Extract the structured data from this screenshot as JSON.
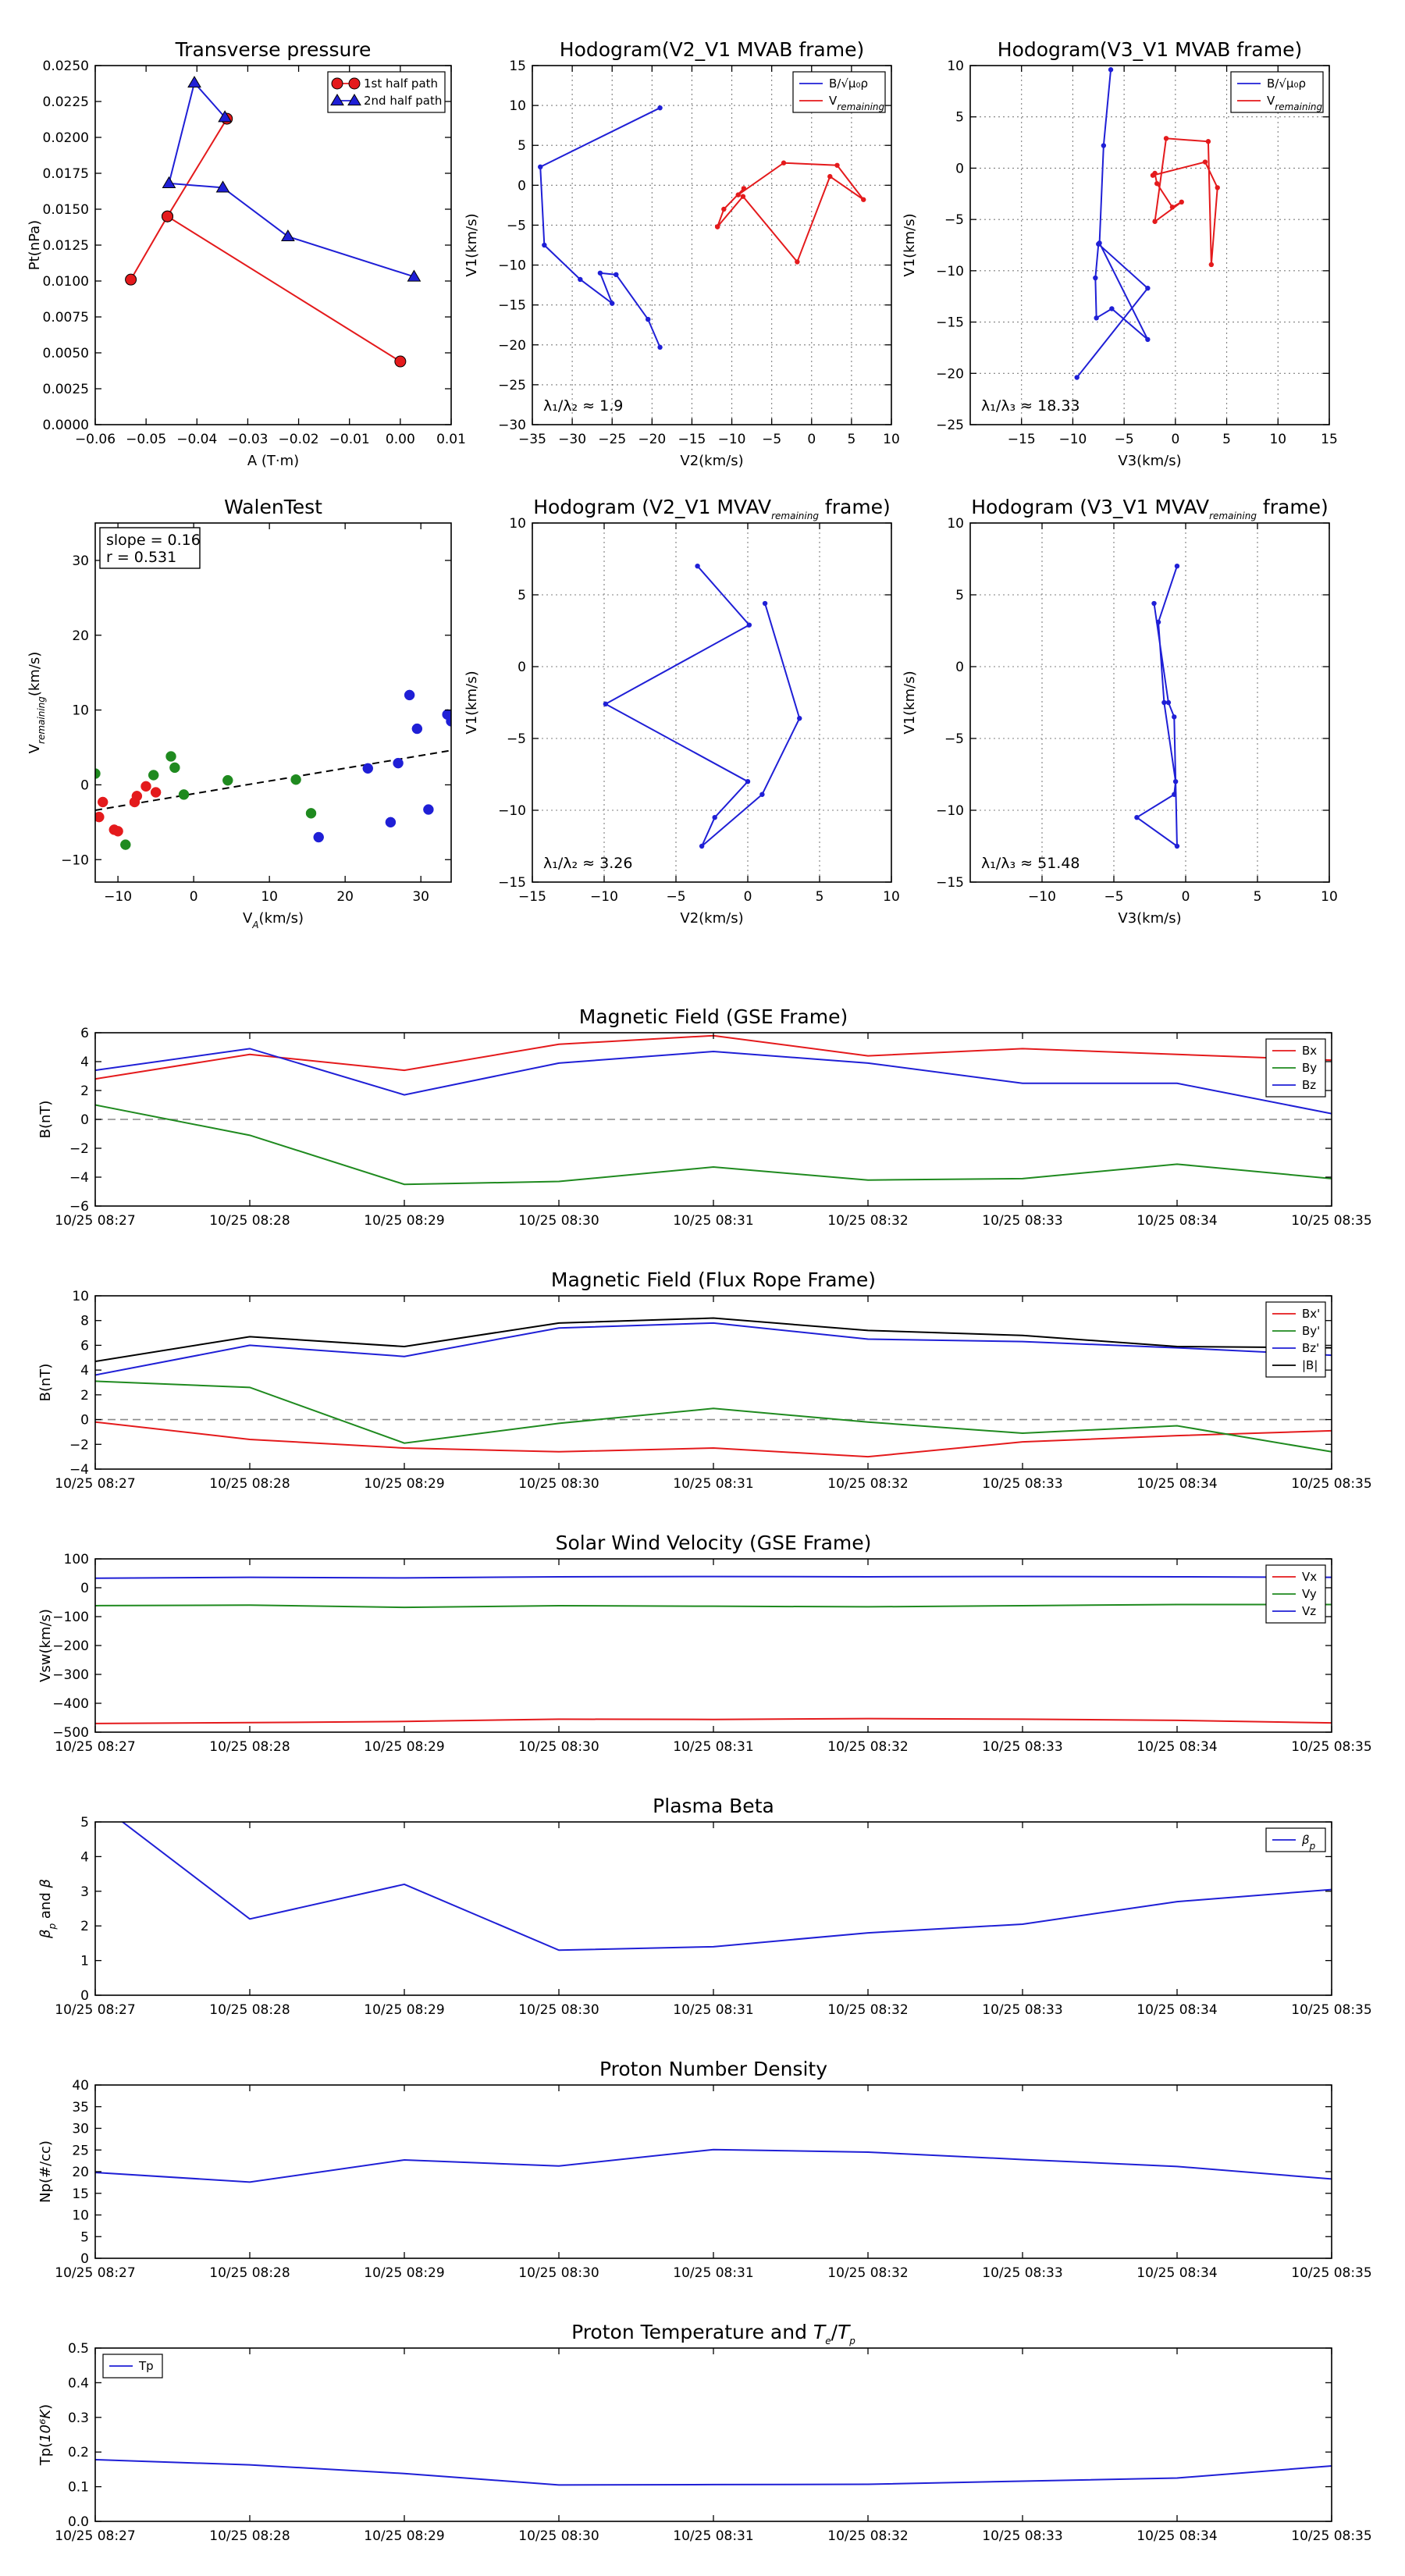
{
  "chart_data": [
    {
      "id": "tp",
      "type": "line",
      "title": "Transverse pressure",
      "xlabel": "A (T·m)",
      "ylabel": "Pt(nPa)",
      "xlim": [
        -0.06,
        0.01
      ],
      "ylim": [
        0,
        0.025
      ],
      "xticks": [
        -0.06,
        -0.05,
        -0.04,
        -0.03,
        -0.02,
        -0.01,
        0,
        0.01
      ],
      "xtick_labels": [
        "−0.06",
        "−0.05",
        "−0.04",
        "−0.03",
        "−0.02",
        "−0.01",
        "0.00",
        "0.01"
      ],
      "yticks": [
        0,
        0.0025,
        0.005,
        0.0075,
        0.01,
        0.0125,
        0.015,
        0.0175,
        0.02,
        0.0225,
        0.025
      ],
      "ytick_labels": [
        "0.0000",
        "0.0025",
        "0.0050",
        "0.0075",
        "0.0100",
        "0.0125",
        "0.0150",
        "0.0175",
        "0.0200",
        "0.0225",
        "0.0250"
      ],
      "grid": false,
      "legend": "top-right",
      "series": [
        {
          "name": "1st half path",
          "color": "#e41a1c",
          "marker": "circle",
          "x": [
            -0.0341,
            -0.0458,
            -0.053,
            -0.0458,
            0.0
          ],
          "y": [
            0.0213,
            0.0145,
            0.0101,
            0.0145,
            0.0044
          ]
        },
        {
          "name": "2nd half path",
          "color": "#1f1fd6",
          "marker": "triangle",
          "x": [
            -0.0345,
            -0.0405,
            -0.0455,
            -0.0349,
            -0.0221,
            0.0027
          ],
          "y": [
            0.0214,
            0.0238,
            0.0168,
            0.0165,
            0.0131,
            0.0103
          ]
        }
      ]
    },
    {
      "id": "h1",
      "type": "line",
      "title": "Hodogram(V2_V1 MVAB frame)",
      "xlabel": "V2(km/s)",
      "ylabel": "V1(km/s)",
      "xlim": [
        -35,
        10
      ],
      "ylim": [
        -30,
        15
      ],
      "xticks": [
        -35,
        -30,
        -25,
        -20,
        -15,
        -10,
        -5,
        0,
        5,
        10
      ],
      "xtick_labels": [
        "−35",
        "−30",
        "−25",
        "−20",
        "−15",
        "−10",
        "−5",
        "0",
        "5",
        "10"
      ],
      "yticks": [
        -30,
        -25,
        -20,
        -15,
        -10,
        -5,
        0,
        5,
        10,
        15
      ],
      "ytick_labels": [
        "−30",
        "−25",
        "−20",
        "−15",
        "−10",
        "−5",
        "0",
        "5",
        "10",
        "15"
      ],
      "grid": true,
      "legend": "top-right",
      "annotation": "λ₁/λ₂ ≈ 1.9",
      "series": [
        {
          "name": "B/√μ₀ρ",
          "color": "#1f1fd6",
          "x": [
            -19,
            -34,
            -33.5,
            -29,
            -25,
            -26.5,
            -24.5,
            -20.5,
            -19
          ],
          "y": [
            9.7,
            2.3,
            -7.5,
            -11.8,
            -14.8,
            -11,
            -11.2,
            -16.8,
            -20.3
          ]
        },
        {
          "name": "Vremaining",
          "color": "#e41a1c",
          "x": [
            -11.8,
            -11,
            -8.5,
            -9.2,
            -3.5,
            3.2,
            6.5,
            2.3,
            -1.8,
            -8.6,
            -11.8
          ],
          "y": [
            -5.2,
            -3,
            -0.4,
            -1.2,
            2.8,
            2.5,
            -1.8,
            1.1,
            -9.6,
            -1.4,
            -5.2
          ]
        }
      ]
    },
    {
      "id": "h2",
      "type": "line",
      "title": "Hodogram(V3_V1 MVAB frame)",
      "xlabel": "V3(km/s)",
      "ylabel": "V1(km/s)",
      "xlim": [
        -20,
        15
      ],
      "ylim": [
        -25,
        10
      ],
      "xticks": [
        -15,
        -10,
        -5,
        0,
        5,
        10,
        15
      ],
      "xtick_labels": [
        "−15",
        "−10",
        "−5",
        "0",
        "5",
        "10",
        "15"
      ],
      "yticks": [
        -25,
        -20,
        -15,
        -10,
        -5,
        0,
        5,
        10
      ],
      "ytick_labels": [
        "−25",
        "−20",
        "−15",
        "−10",
        "−5",
        "0",
        "5",
        "10"
      ],
      "grid": true,
      "legend": "top-right",
      "annotation": "λ₁/λ₃ ≈ 18.33",
      "series": [
        {
          "name": "B/√μ₀ρ",
          "color": "#1f1fd6",
          "x": [
            -6.3,
            -7,
            -7.4,
            -2.7,
            -6.2,
            -7.7,
            -7.8,
            -7.5,
            -2.7,
            -9.6
          ],
          "y": [
            9.6,
            2.2,
            -7.3,
            -16.7,
            -13.7,
            -14.6,
            -10.7,
            -7.4,
            -11.7,
            -20.4
          ]
        },
        {
          "name": "Vremaining",
          "color": "#e41a1c",
          "x": [
            -2,
            -1.8,
            -0.3,
            0.6,
            -2,
            -0.9,
            3.2,
            3.5,
            4.1,
            2.9,
            -2.2
          ],
          "y": [
            -0.5,
            -1.5,
            -3.8,
            -3.3,
            -5.2,
            2.9,
            2.6,
            -9.4,
            -1.9,
            0.6,
            -0.7
          ]
        }
      ]
    },
    {
      "id": "walen",
      "type": "scatter",
      "title": "WalenTest",
      "xlabel": "V_A(km/s)",
      "ylabel": "V_remaining(km/s)",
      "xlim": [
        -13,
        34
      ],
      "ylim": [
        -13,
        35
      ],
      "xticks": [
        -10,
        0,
        10,
        20,
        30
      ],
      "xtick_labels": [
        "−10",
        "0",
        "10",
        "20",
        "30"
      ],
      "yticks": [
        -10,
        0,
        10,
        20,
        30
      ],
      "ytick_labels": [
        "−10",
        "0",
        "10",
        "20",
        "30"
      ],
      "grid": false,
      "annotation_lines": [
        "slope = 0.16",
        "r = 0.531"
      ],
      "fit": {
        "slope": 0.16,
        "x": [
          -13,
          34
        ],
        "y": [
          -3.4,
          4.6
        ]
      },
      "series": [
        {
          "color": "#e41a1c",
          "x": [
            -12.5,
            -12,
            -10.5,
            -10,
            -7.5,
            -7.8,
            -6.3,
            -5
          ],
          "y": [
            -4.3,
            -2.3,
            -6,
            -6.2,
            -1.5,
            -2.3,
            -0.2,
            -1
          ]
        },
        {
          "color": "#1f8a1f",
          "x": [
            -13,
            -9,
            -3,
            -5.3,
            -2.5,
            -1.3,
            4.5,
            13.5,
            15.5
          ],
          "y": [
            1.5,
            -8,
            3.8,
            1.3,
            2.3,
            -1.3,
            0.6,
            0.7,
            -3.8
          ]
        },
        {
          "color": "#1f1fd6",
          "x": [
            16.5,
            23,
            26,
            27,
            28.5,
            29.5,
            31,
            33.5,
            34
          ],
          "y": [
            -7,
            2.2,
            -5,
            2.9,
            12,
            7.5,
            -3.3,
            9.4,
            8.5
          ]
        }
      ]
    },
    {
      "id": "h3",
      "type": "line",
      "title": "Hodogram (V2_V1 MVAV_remaining frame)",
      "xlabel": "V2(km/s)",
      "ylabel": "V1(km/s)",
      "xlim": [
        -15,
        10
      ],
      "ylim": [
        -15,
        10
      ],
      "xticks": [
        -15,
        -10,
        -5,
        0,
        5,
        10
      ],
      "xtick_labels": [
        "−15",
        "−10",
        "−5",
        "0",
        "5",
        "10"
      ],
      "yticks": [
        -15,
        -10,
        -5,
        0,
        5,
        10
      ],
      "ytick_labels": [
        "−15",
        "−10",
        "−5",
        "0",
        "5",
        "10"
      ],
      "grid": true,
      "annotation": "λ₁/λ₂ ≈ 3.26",
      "series": [
        {
          "color": "#1f1fd6",
          "x": [
            -3.5,
            0.1,
            -9.9,
            0,
            -2.3,
            -3.2,
            1,
            3.6,
            1.2
          ],
          "y": [
            7,
            2.9,
            -2.6,
            -8,
            -10.5,
            -12.5,
            -8.9,
            -3.6,
            4.4
          ]
        }
      ]
    },
    {
      "id": "h4",
      "type": "line",
      "title": "Hodogram (V3_V1 MVAV_remaining frame)",
      "xlabel": "V3(km/s)",
      "ylabel": "V1(km/s)",
      "xlim": [
        -15,
        10
      ],
      "ylim": [
        -15,
        10
      ],
      "xticks": [
        -10,
        -5,
        0,
        5,
        10
      ],
      "xtick_labels": [
        "−10",
        "−5",
        "0",
        "5",
        "10"
      ],
      "yticks": [
        -15,
        -10,
        -5,
        0,
        5,
        10
      ],
      "ytick_labels": [
        "−15",
        "−10",
        "−5",
        "0",
        "5",
        "10"
      ],
      "grid": true,
      "annotation": "λ₁/λ₃ ≈ 51.48",
      "series": [
        {
          "color": "#1f1fd6",
          "x": [
            -0.6,
            -1.9,
            -1.5,
            -0.7,
            -0.8,
            -3.4,
            -0.6,
            -0.8,
            -1.2,
            -2.2
          ],
          "y": [
            7,
            3.1,
            -2.5,
            -8,
            -8.9,
            -10.5,
            -12.5,
            -3.5,
            -2.5,
            4.4
          ]
        }
      ]
    },
    {
      "id": "bgse",
      "type": "line",
      "title": "Magnetic Field (GSE Frame)",
      "ylabel": "B(nT)",
      "ylim": [
        -6,
        6
      ],
      "yticks": [
        -6,
        -4,
        -2,
        0,
        2,
        4,
        6
      ],
      "ytick_labels": [
        "−6",
        "−4",
        "−2",
        "0",
        "2",
        "4",
        "6"
      ],
      "zero_line": true,
      "legend": "top-right",
      "categories": [
        "10/25 08:27",
        "10/25 08:28",
        "10/25 08:29",
        "10/25 08:30",
        "10/25 08:31",
        "10/25 08:32",
        "10/25 08:33",
        "10/25 08:34",
        "10/25 08:35"
      ],
      "series": [
        {
          "name": "Bx",
          "color": "#e41a1c",
          "values": [
            2.8,
            4.5,
            3.4,
            5.2,
            5.8,
            4.4,
            4.9,
            4.5,
            4.1
          ]
        },
        {
          "name": "By",
          "color": "#1f8a1f",
          "values": [
            1,
            -1.1,
            -4.5,
            -4.3,
            -3.3,
            -4.2,
            -4.1,
            -3.1,
            -4.1
          ]
        },
        {
          "name": "Bz",
          "color": "#1f1fd6",
          "values": [
            3.4,
            4.9,
            1.7,
            3.9,
            4.7,
            3.9,
            2.5,
            2.5,
            0.4
          ]
        }
      ]
    },
    {
      "id": "bfr",
      "type": "line",
      "title": "Magnetic Field (Flux Rope Frame)",
      "ylabel": "B(nT)",
      "ylim": [
        -4,
        10
      ],
      "yticks": [
        -4,
        -2,
        0,
        2,
        4,
        6,
        8,
        10
      ],
      "ytick_labels": [
        "−4",
        "−2",
        "0",
        "2",
        "4",
        "6",
        "8",
        "10"
      ],
      "zero_line": true,
      "legend": "top-right",
      "categories": [
        "10/25 08:27",
        "10/25 08:28",
        "10/25 08:29",
        "10/25 08:30",
        "10/25 08:31",
        "10/25 08:32",
        "10/25 08:33",
        "10/25 08:34",
        "10/25 08:35"
      ],
      "series": [
        {
          "name": "Bx'",
          "color": "#e41a1c",
          "values": [
            -0.2,
            -1.6,
            -2.3,
            -2.6,
            -2.3,
            -3,
            -1.8,
            -1.3,
            -0.9
          ]
        },
        {
          "name": "By'",
          "color": "#1f8a1f",
          "values": [
            3.1,
            2.6,
            -1.9,
            -0.3,
            0.9,
            -0.2,
            -1.1,
            -0.5,
            -2.6
          ]
        },
        {
          "name": "Bz'",
          "color": "#1f1fd6",
          "values": [
            3.6,
            6,
            5.1,
            7.4,
            7.8,
            6.5,
            6.3,
            5.8,
            5.2
          ]
        },
        {
          "name": "|B|",
          "color": "#000000",
          "values": [
            4.7,
            6.7,
            5.9,
            7.8,
            8.2,
            7.2,
            6.8,
            5.9,
            5.8
          ]
        }
      ]
    },
    {
      "id": "vsw",
      "type": "line",
      "title": "Solar Wind Velocity (GSE Frame)",
      "ylabel": "Vsw(km/s)",
      "ylim": [
        -500,
        100
      ],
      "yticks": [
        -500,
        -400,
        -300,
        -200,
        -100,
        0,
        100
      ],
      "ytick_labels": [
        "−500",
        "−400",
        "−300",
        "−200",
        "−100",
        "0",
        "100"
      ],
      "legend": "top-right",
      "categories": [
        "10/25 08:27",
        "10/25 08:28",
        "10/25 08:29",
        "10/25 08:30",
        "10/25 08:31",
        "10/25 08:32",
        "10/25 08:33",
        "10/25 08:34",
        "10/25 08:35"
      ],
      "series": [
        {
          "name": "Vx",
          "color": "#e41a1c",
          "values": [
            -470,
            -467,
            -463,
            -455,
            -456,
            -453,
            -455,
            -459,
            -468
          ]
        },
        {
          "name": "Vy",
          "color": "#1f8a1f",
          "values": [
            -62,
            -60,
            -68,
            -62,
            -64,
            -66,
            -62,
            -58,
            -58
          ]
        },
        {
          "name": "Vz",
          "color": "#1f1fd6",
          "values": [
            33,
            36,
            34,
            38,
            39,
            38,
            39,
            38,
            36
          ]
        }
      ]
    },
    {
      "id": "beta",
      "type": "line",
      "title": "Plasma Beta",
      "ylabel": "βp and β",
      "ylim": [
        0,
        5
      ],
      "yticks": [
        0,
        1,
        2,
        3,
        4,
        5
      ],
      "ytick_labels": [
        "0",
        "1",
        "2",
        "3",
        "4",
        "5"
      ],
      "legend": "top-right",
      "categories": [
        "10/25 08:27",
        "10/25 08:28",
        "10/25 08:29",
        "10/25 08:30",
        "10/25 08:31",
        "10/25 08:32",
        "10/25 08:33",
        "10/25 08:34",
        "10/25 08:35"
      ],
      "series": [
        {
          "name": "βp",
          "color": "#1f1fd6",
          "values": [
            5.6,
            2.2,
            3.2,
            1.3,
            1.4,
            1.8,
            2.05,
            2.7,
            3.05
          ]
        }
      ]
    },
    {
      "id": "np",
      "type": "line",
      "title": "Proton Number Density",
      "ylabel": "Np(#/cc)",
      "ylim": [
        0,
        40
      ],
      "yticks": [
        0,
        5,
        10,
        15,
        20,
        25,
        30,
        35,
        40
      ],
      "ytick_labels": [
        "0",
        "5",
        "10",
        "15",
        "20",
        "25",
        "30",
        "35",
        "40"
      ],
      "categories": [
        "10/25 08:27",
        "10/25 08:28",
        "10/25 08:29",
        "10/25 08:30",
        "10/25 08:31",
        "10/25 08:32",
        "10/25 08:33",
        "10/25 08:34",
        "10/25 08:35"
      ],
      "series": [
        {
          "color": "#1f1fd6",
          "values": [
            19.8,
            17.6,
            22.7,
            21.3,
            25.1,
            24.5,
            22.8,
            21.2,
            18.3
          ]
        }
      ]
    },
    {
      "id": "tp2",
      "type": "line",
      "title": "Proton Temperature and Te/Tp",
      "ylabel": "Tp(10⁶K)",
      "ylim": [
        0,
        0.5
      ],
      "yticks": [
        0,
        0.1,
        0.2,
        0.3,
        0.4,
        0.5
      ],
      "ytick_labels": [
        "0.0",
        "0.1",
        "0.2",
        "0.3",
        "0.4",
        "0.5"
      ],
      "legend": "top-left",
      "categories": [
        "10/25 08:27",
        "10/25 08:28",
        "10/25 08:29",
        "10/25 08:30",
        "10/25 08:31",
        "10/25 08:32",
        "10/25 08:33",
        "10/25 08:34",
        "10/25 08:35"
      ],
      "series": [
        {
          "name": "Tp",
          "color": "#1f1fd6",
          "values": [
            0.178,
            0.163,
            0.138,
            0.105,
            0.106,
            0.107,
            0.116,
            0.125,
            0.16
          ]
        }
      ]
    }
  ]
}
